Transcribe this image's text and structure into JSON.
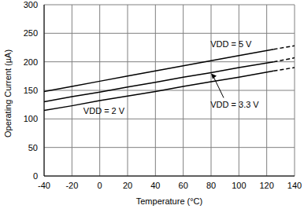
{
  "chart_data": {
    "type": "line",
    "x_label": "Temperature (°C)",
    "y_label": "Operating Current (µA)",
    "x": [
      -40,
      -20,
      0,
      20,
      40,
      60,
      80,
      100,
      125,
      140
    ],
    "series": [
      {
        "name": "VDD = 5 V",
        "color": "#000000",
        "values": [
          148,
          157,
          166,
          175,
          184,
          193,
          202,
          211,
          222,
          228
        ]
      },
      {
        "name": "VDD = 3.3 V",
        "color": "#000000",
        "values": [
          130,
          139,
          147,
          156,
          164,
          173,
          181,
          190,
          200,
          207
        ]
      },
      {
        "name": "VDD = 2 V",
        "color": "#000000",
        "values": [
          115,
          123,
          132,
          140,
          148,
          157,
          165,
          173,
          184,
          190
        ]
      }
    ],
    "xlim": [
      -40,
      140
    ],
    "xticks": [
      -40,
      -20,
      0,
      20,
      40,
      60,
      80,
      100,
      120,
      140
    ],
    "ylim": [
      0,
      300
    ],
    "yticks": [
      0,
      50,
      100,
      150,
      200,
      250,
      300
    ],
    "grid": true
  }
}
